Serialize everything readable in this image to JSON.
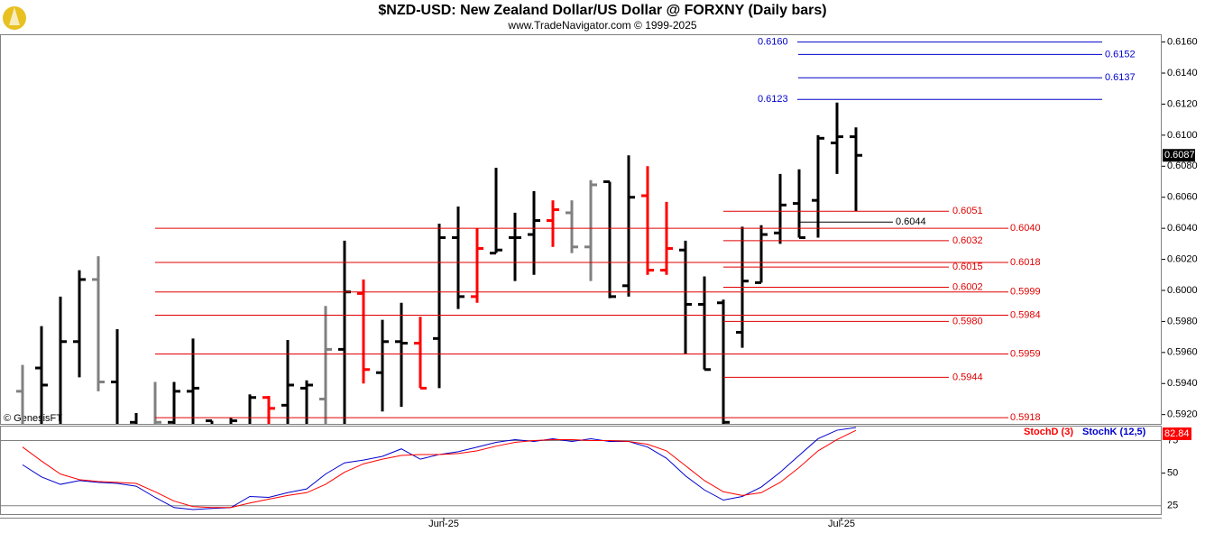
{
  "page": {
    "title": "$NZD-USD:  New Zealand Dollar/US Dollar @ FORXNY  (Daily bars)",
    "subtitle": "www.TradeNavigator.com © 1999-2025",
    "watermark": "© GenesisFT"
  },
  "chart_data": [
    {
      "type": "ohlc",
      "open": [
        0.5935,
        0.595,
        0.591,
        0.5967,
        0.6007,
        0.5941,
        0.5915,
        0.591,
        0.5915,
        0.5935,
        0.5916,
        0.591,
        0.5912,
        0.5931,
        0.5926,
        0.5937,
        0.593,
        0.5962,
        0.5998,
        0.5947,
        0.5967,
        0.5966,
        0.5969,
        0.6034,
        0.5996,
        0.6024,
        0.6034,
        0.6036,
        0.6045,
        0.605,
        0.6028,
        0.607,
        0.6003,
        0.6061,
        0.6013,
        0.6026,
        0.5991,
        0.5992,
        0.5973,
        0.6005,
        0.6037,
        0.6056,
        0.6058,
        0.6095,
        0.6099
      ],
      "high": [
        0.5952,
        0.5977,
        0.5996,
        0.6013,
        0.6022,
        0.5975,
        0.5921,
        0.5941,
        0.5941,
        0.5969,
        0.5916,
        0.5918,
        0.5933,
        0.5932,
        0.5968,
        0.5942,
        0.599,
        0.6032,
        0.6007,
        0.5981,
        0.5992,
        0.5983,
        0.6043,
        0.6054,
        0.604,
        0.6079,
        0.605,
        0.6064,
        0.6058,
        0.6058,
        0.6071,
        0.607,
        0.6087,
        0.608,
        0.6057,
        0.6032,
        0.6009,
        0.5994,
        0.6041,
        0.6042,
        0.6075,
        0.6078,
        0.61,
        0.6121,
        0.6105
      ],
      "low": [
        0.59,
        0.59,
        0.59,
        0.5944,
        0.5935,
        0.59,
        0.59,
        0.59,
        0.59,
        0.59,
        0.59,
        0.59,
        0.59,
        0.59,
        0.59,
        0.59,
        0.59,
        0.59,
        0.594,
        0.5922,
        0.5925,
        0.5937,
        0.5937,
        0.5988,
        0.5992,
        0.6024,
        0.6006,
        0.601,
        0.6028,
        0.6024,
        0.6006,
        0.5995,
        0.5996,
        0.601,
        0.601,
        0.5959,
        0.5949,
        0.59,
        0.5963,
        0.6005,
        0.603,
        0.6034,
        0.6034,
        0.6075,
        0.6051
      ],
      "close": [
        0.591,
        0.5939,
        0.5967,
        0.6007,
        0.5941,
        0.5905,
        0.5905,
        0.5915,
        0.5935,
        0.5937,
        0.591,
        0.5916,
        0.5931,
        0.5924,
        0.5939,
        0.5939,
        0.5962,
        0.5999,
        0.5949,
        0.5967,
        0.5966,
        0.5937,
        0.6034,
        0.5996,
        0.6027,
        0.6026,
        0.6034,
        0.6045,
        0.6052,
        0.6028,
        0.6068,
        0.5996,
        0.606,
        0.6013,
        0.6027,
        0.5991,
        0.5949,
        0.5915,
        0.6006,
        0.6036,
        0.6055,
        0.6034,
        0.6098,
        0.6099,
        0.6087
      ],
      "colors": [
        "#808080",
        "#000000",
        "#000000",
        "#000000",
        "#808080",
        "#000000",
        "#000000",
        "#808080",
        "#000000",
        "#000000",
        "#000000",
        "#000000",
        "#000000",
        "#ff0000",
        "#000000",
        "#000000",
        "#808080",
        "#000000",
        "#ff0000",
        "#000000",
        "#000000",
        "#ff0000",
        "#000000",
        "#000000",
        "#ff0000",
        "#000000",
        "#000000",
        "#000000",
        "#ff0000",
        "#808080",
        "#808080",
        "#000000",
        "#000000",
        "#ff0000",
        "#ff0000",
        "#000000",
        "#000000",
        "#000000",
        "#000000",
        "#000000",
        "#000000",
        "#000000",
        "#000000",
        "#000000",
        "#000000"
      ],
      "ylim": [
        0.5914,
        0.6165
      ],
      "yticks": [
        {
          "value": 0.592,
          "label": "0.5920"
        },
        {
          "value": 0.594,
          "label": "0.5940"
        },
        {
          "value": 0.596,
          "label": "0.5960"
        },
        {
          "value": 0.598,
          "label": "0.5980"
        },
        {
          "value": 0.6,
          "label": "0.6000"
        },
        {
          "value": 0.602,
          "label": "0.6020"
        },
        {
          "value": 0.604,
          "label": "0.6040"
        },
        {
          "value": 0.606,
          "label": "0.6060"
        },
        {
          "value": 0.608,
          "label": "0.6080"
        },
        {
          "value": 0.61,
          "label": "0.6100"
        },
        {
          "value": 0.612,
          "label": "0.6120"
        },
        {
          "value": 0.614,
          "label": "0.6140"
        },
        {
          "value": 0.616,
          "label": "0.6160"
        }
      ],
      "last_price": 0.6087,
      "levels": [
        {
          "value": 0.616,
          "label": "0.6160",
          "color": "#0000cc"
        },
        {
          "value": 0.6152,
          "label": "0.6152",
          "color": "#0000cc"
        },
        {
          "value": 0.6137,
          "label": "0.6137",
          "color": "#0000cc"
        },
        {
          "value": 0.6123,
          "label": "0.6123",
          "color": "#0000cc"
        },
        {
          "value": 0.6051,
          "label": "0.6051",
          "color": "#e00000"
        },
        {
          "value": 0.6032,
          "label": "0.6032",
          "color": "#e00000"
        },
        {
          "value": 0.6015,
          "label": "0.6015",
          "color": "#e00000"
        },
        {
          "value": 0.6002,
          "label": "0.6002",
          "color": "#e00000"
        },
        {
          "value": 0.598,
          "label": "0.5980",
          "color": "#e00000"
        },
        {
          "value": 0.5944,
          "label": "0.5944",
          "color": "#e00000"
        },
        {
          "value": 0.604,
          "label": "0.6040",
          "color": "#e00000"
        },
        {
          "value": 0.6018,
          "label": "0.6018",
          "color": "#e00000"
        },
        {
          "value": 0.5999,
          "label": "0.5999",
          "color": "#e00000"
        },
        {
          "value": 0.5984,
          "label": "0.5984",
          "color": "#e00000"
        },
        {
          "value": 0.5959,
          "label": "0.5959",
          "color": "#e00000"
        },
        {
          "value": 0.5918,
          "label": "0.5918",
          "color": "#e00000"
        },
        {
          "value": 0.6044,
          "label": "0.6044",
          "color": "#000000"
        }
      ],
      "x_labels": [
        {
          "index": 22,
          "label": "Jun-25"
        },
        {
          "index": 43,
          "label": "Jul-25"
        }
      ]
    },
    {
      "type": "line",
      "ylim": [
        18.6,
        86.4
      ],
      "yticks": [
        25,
        50,
        75
      ],
      "series": [
        {
          "name": "StochK (12,5)",
          "color": "#0000cc",
          "values": [
            56.4,
            47.1,
            41.4,
            44.3,
            42.9,
            42.1,
            40,
            31.4,
            23.6,
            22.1,
            22.9,
            23.6,
            32.1,
            31.4,
            35,
            37.9,
            49.3,
            57.9,
            60,
            62.9,
            68.6,
            60.7,
            64.3,
            66.4,
            70,
            73.6,
            75.7,
            74.3,
            76.4,
            74.3,
            76.4,
            74.3,
            74.3,
            70,
            61.4,
            47.9,
            37.1,
            29.3,
            32.1,
            39.3,
            50.7,
            63.6,
            76.4,
            82.9,
            85
          ]
        },
        {
          "name": "StochD (3)",
          "color": "#ff0000",
          "values": [
            70,
            59.3,
            49.3,
            45,
            43.6,
            42.9,
            42.1,
            35.7,
            28.6,
            24.3,
            23.6,
            23.6,
            27.1,
            30,
            32.9,
            35,
            41.4,
            50.7,
            57.1,
            60.7,
            63.6,
            64.3,
            64.3,
            65,
            67.1,
            70.7,
            73.6,
            75,
            75.7,
            75.7,
            75,
            75,
            74.3,
            72.1,
            67.1,
            55.7,
            44.3,
            35.7,
            32.9,
            35,
            42.9,
            54.3,
            67.1,
            75.7,
            82.84
          ]
        }
      ]
    }
  ]
}
